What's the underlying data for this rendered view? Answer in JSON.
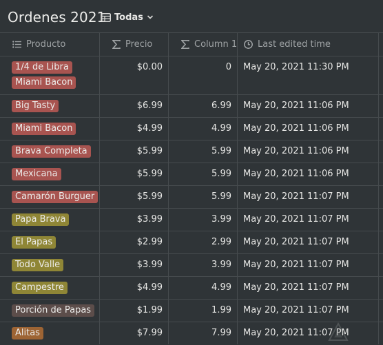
{
  "page": {
    "title": "Ordenes 2021",
    "view_label": "Todas",
    "view_icon": "table-icon",
    "view_chevron": "chevron-down-icon"
  },
  "columns": [
    {
      "label": "Producto",
      "icon": "list-icon"
    },
    {
      "label": "Precio",
      "icon": "sigma-icon"
    },
    {
      "label": "Column 1",
      "icon": "sigma-icon"
    },
    {
      "label": "Last edited time",
      "icon": "clock-icon"
    }
  ],
  "rows": [
    {
      "tags": [
        {
          "text": "1/4 de Libra",
          "color": "#a85450"
        },
        {
          "text": "Miami Bacon",
          "color": "#a85450"
        }
      ],
      "precio": "$0.00",
      "col1": "0",
      "time": "May 20, 2021 11:30 PM"
    },
    {
      "tags": [
        {
          "text": "Big Tasty",
          "color": "#a85450"
        }
      ],
      "precio": "$6.99",
      "col1": "6.99",
      "time": "May 20, 2021 11:06 PM"
    },
    {
      "tags": [
        {
          "text": "Miami Bacon",
          "color": "#a85450"
        }
      ],
      "precio": "$4.99",
      "col1": "4.99",
      "time": "May 20, 2021 11:06 PM"
    },
    {
      "tags": [
        {
          "text": "Brava Completa",
          "color": "#a85450"
        }
      ],
      "precio": "$5.99",
      "col1": "5.99",
      "time": "May 20, 2021 11:06 PM"
    },
    {
      "tags": [
        {
          "text": "Mexicana",
          "color": "#a85450"
        }
      ],
      "precio": "$5.99",
      "col1": "5.99",
      "time": "May 20, 2021 11:06 PM"
    },
    {
      "tags": [
        {
          "text": "Camarón Burguer",
          "color": "#a85450"
        }
      ],
      "precio": "$5.99",
      "col1": "5.99",
      "time": "May 20, 2021 11:07 PM"
    },
    {
      "tags": [
        {
          "text": "Papa Brava",
          "color": "#8f8636"
        }
      ],
      "precio": "$3.99",
      "col1": "3.99",
      "time": "May 20, 2021 11:07 PM"
    },
    {
      "tags": [
        {
          "text": "El Papas",
          "color": "#8f8636"
        }
      ],
      "precio": "$2.99",
      "col1": "2.99",
      "time": "May 20, 2021 11:07 PM"
    },
    {
      "tags": [
        {
          "text": "Todo Valle",
          "color": "#8f8636"
        }
      ],
      "precio": "$3.99",
      "col1": "3.99",
      "time": "May 20, 2021 11:07 PM"
    },
    {
      "tags": [
        {
          "text": "Campestre",
          "color": "#8f8636"
        }
      ],
      "precio": "$4.99",
      "col1": "4.99",
      "time": "May 20, 2021 11:07 PM"
    },
    {
      "tags": [
        {
          "text": "Porción de Papas",
          "color": "#5c4d4a"
        }
      ],
      "precio": "$1.99",
      "col1": "1.99",
      "time": "May 20, 2021 11:07 PM"
    },
    {
      "tags": [
        {
          "text": "Alitas",
          "color": "#9d6434"
        }
      ],
      "precio": "$7.99",
      "col1": "7.99",
      "time": "May 20, 2021 11:07 PM"
    }
  ],
  "colors": {
    "background": "#2f3437",
    "border": "#464b4e",
    "header_text": "#9fa3a5",
    "tag_red": "#a85450",
    "tag_olive": "#8f8636",
    "tag_brown": "#5c4d4a",
    "tag_orange": "#9d6434"
  }
}
